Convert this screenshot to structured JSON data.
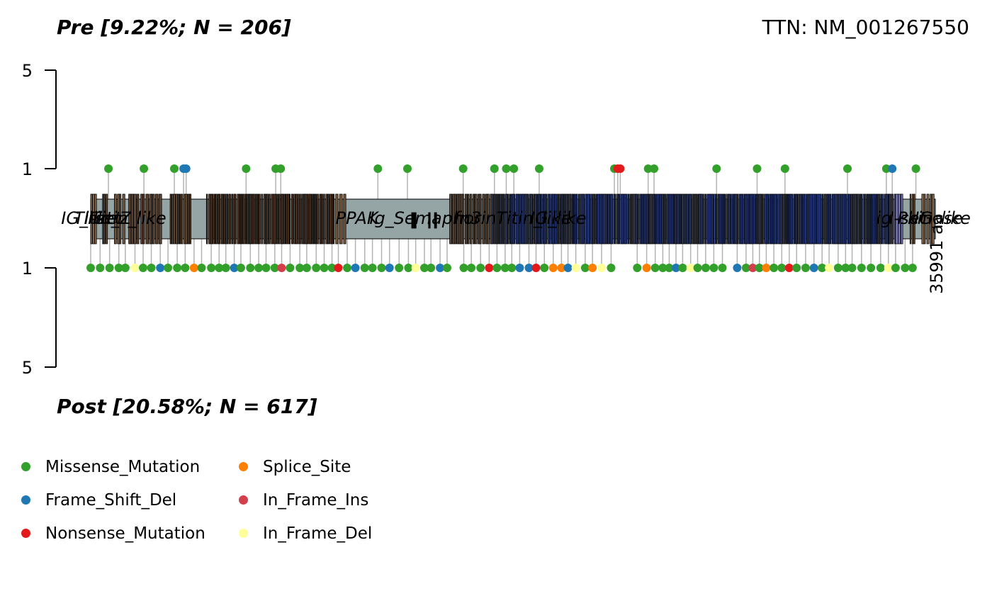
{
  "chart_data": {
    "type": "lollipop",
    "gene": "TTN: NM_001267550",
    "protein_length_label": "35991 aa",
    "top": {
      "title": "Pre [9.22%; N = 206]",
      "yticks": [
        "5",
        "1"
      ]
    },
    "bottom": {
      "title": "Post [20.58%; N = 617]",
      "yticks": [
        "1",
        "5"
      ]
    },
    "domains": [
      "IG_like",
      "Titin_Z",
      "PPAK",
      "Ig_Semaphorin",
      "fn3",
      "I-set",
      "ig",
      "Titin_like",
      "Pkinase"
    ],
    "colors": {
      "Missense_Mutation": "#33a02c",
      "Splice_Site": "#ff7f00",
      "Frame_Shift_Del": "#1f78b4",
      "In_Frame_Ins": "#d43f4d",
      "Nonsense_Mutation": "#e31a1c",
      "In_Frame_Del": "#ffff99",
      "backbone": "#95a5a6",
      "stem": "#b3b3b3"
    },
    "top_mutations": [
      {
        "pos": 0.021,
        "type": "Missense_Mutation"
      },
      {
        "pos": 0.063,
        "type": "Missense_Mutation"
      },
      {
        "pos": 0.099,
        "type": "Missense_Mutation"
      },
      {
        "pos": 0.11,
        "type": "Frame_Shift_Del"
      },
      {
        "pos": 0.113,
        "type": "Frame_Shift_Del"
      },
      {
        "pos": 0.184,
        "type": "Missense_Mutation"
      },
      {
        "pos": 0.219,
        "type": "Missense_Mutation"
      },
      {
        "pos": 0.225,
        "type": "Missense_Mutation"
      },
      {
        "pos": 0.34,
        "type": "Missense_Mutation"
      },
      {
        "pos": 0.375,
        "type": "Missense_Mutation"
      },
      {
        "pos": 0.441,
        "type": "Missense_Mutation"
      },
      {
        "pos": 0.478,
        "type": "Missense_Mutation"
      },
      {
        "pos": 0.492,
        "type": "Missense_Mutation"
      },
      {
        "pos": 0.501,
        "type": "Missense_Mutation"
      },
      {
        "pos": 0.531,
        "type": "Missense_Mutation"
      },
      {
        "pos": 0.62,
        "type": "Missense_Mutation"
      },
      {
        "pos": 0.624,
        "type": "Nonsense_Mutation"
      },
      {
        "pos": 0.627,
        "type": "Nonsense_Mutation"
      },
      {
        "pos": 0.66,
        "type": "Missense_Mutation"
      },
      {
        "pos": 0.667,
        "type": "Missense_Mutation"
      },
      {
        "pos": 0.741,
        "type": "Missense_Mutation"
      },
      {
        "pos": 0.789,
        "type": "Missense_Mutation"
      },
      {
        "pos": 0.822,
        "type": "Missense_Mutation"
      },
      {
        "pos": 0.896,
        "type": "Missense_Mutation"
      },
      {
        "pos": 0.942,
        "type": "Missense_Mutation"
      },
      {
        "pos": 0.949,
        "type": "Frame_Shift_Del"
      },
      {
        "pos": 0.977,
        "type": "Missense_Mutation"
      }
    ],
    "legend": [
      {
        "label": "Missense_Mutation",
        "key": "Missense_Mutation"
      },
      {
        "label": "Frame_Shift_Del",
        "key": "Frame_Shift_Del"
      },
      {
        "label": "Nonsense_Mutation",
        "key": "Nonsense_Mutation"
      },
      {
        "label": "Splice_Site",
        "key": "Splice_Site"
      },
      {
        "label": "In_Frame_Ins",
        "key": "In_Frame_Ins"
      },
      {
        "label": "In_Frame_Del",
        "key": "In_Frame_Del"
      }
    ]
  }
}
